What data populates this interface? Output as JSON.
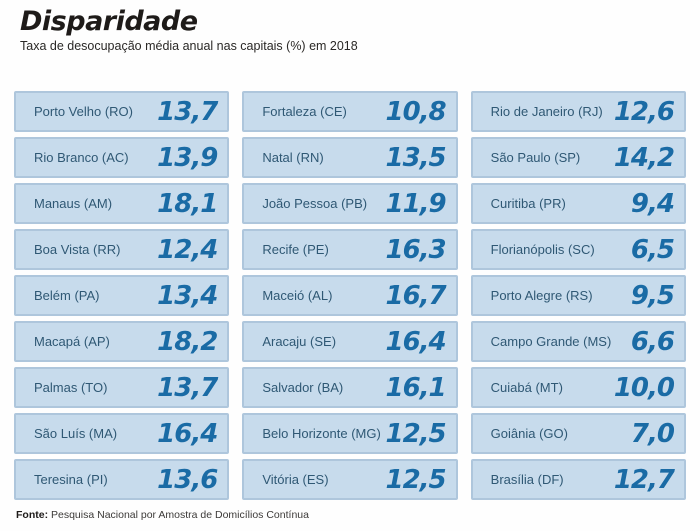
{
  "header": {
    "title": "Disparidade",
    "subtitle": "Taxa de desocupação média anual nas capitais (%) em 2018"
  },
  "footer": {
    "source_label": "Fonte:",
    "source_text": " Pesquisa Nacional por Amostra de Domicílios Contínua"
  },
  "colors": {
    "band_fill": "#c7dbec",
    "band_border": "#aec6dc",
    "city_text": "#2f5874",
    "value_text": "#1a6ba5",
    "title_text": "#1e1b19"
  },
  "chart_data": {
    "type": "table",
    "title": "Disparidade",
    "subtitle": "Taxa de desocupação média anual nas capitais (%) em 2018",
    "unit": "%",
    "decimal_separator": ",",
    "columns": [
      {
        "rows": [
          {
            "city": "Porto Velho (RO)",
            "value": "13,7"
          },
          {
            "city": "Rio Branco (AC)",
            "value": "13,9"
          },
          {
            "city": "Manaus (AM)",
            "value": "18,1"
          },
          {
            "city": "Boa Vista (RR)",
            "value": "12,4"
          },
          {
            "city": "Belém (PA)",
            "value": "13,4"
          },
          {
            "city": "Macapá (AP)",
            "value": "18,2"
          },
          {
            "city": "Palmas (TO)",
            "value": "13,7"
          },
          {
            "city": "São Luís (MA)",
            "value": "16,4"
          },
          {
            "city": "Teresina (PI)",
            "value": "13,6"
          }
        ]
      },
      {
        "rows": [
          {
            "city": "Fortaleza (CE)",
            "value": "10,8"
          },
          {
            "city": "Natal (RN)",
            "value": "13,5"
          },
          {
            "city": "João Pessoa (PB)",
            "value": "11,9"
          },
          {
            "city": "Recife (PE)",
            "value": "16,3"
          },
          {
            "city": "Maceió (AL)",
            "value": "16,7"
          },
          {
            "city": "Aracaju (SE)",
            "value": "16,4"
          },
          {
            "city": "Salvador (BA)",
            "value": "16,1"
          },
          {
            "city": "Belo Horizonte (MG)",
            "value": "12,5"
          },
          {
            "city": "Vitória (ES)",
            "value": "12,5"
          }
        ]
      },
      {
        "rows": [
          {
            "city": "Rio de Janeiro (RJ)",
            "value": "12,6"
          },
          {
            "city": "São Paulo (SP)",
            "value": "14,2"
          },
          {
            "city": "Curitiba (PR)",
            "value": "9,4"
          },
          {
            "city": "Florianópolis (SC)",
            "value": "6,5"
          },
          {
            "city": "Porto Alegre (RS)",
            "value": "9,5"
          },
          {
            "city": "Campo Grande (MS)",
            "value": "6,6"
          },
          {
            "city": "Cuiabá (MT)",
            "value": "10,0"
          },
          {
            "city": "Goiânia (GO)",
            "value": "7,0"
          },
          {
            "city": "Brasília (DF)",
            "value": "12,7"
          }
        ]
      }
    ]
  }
}
